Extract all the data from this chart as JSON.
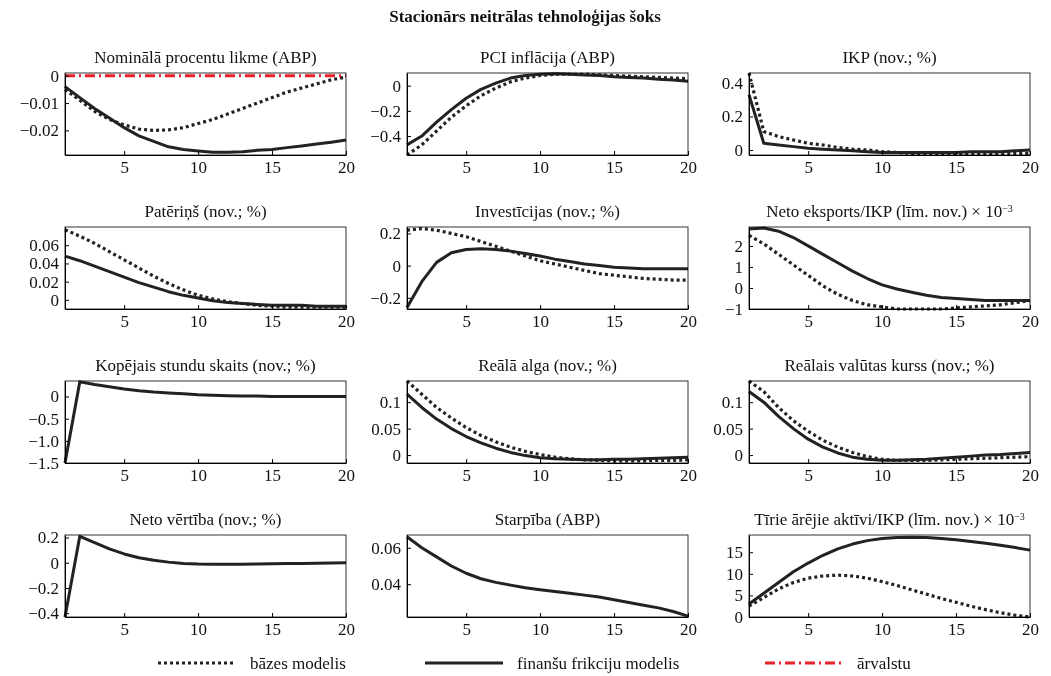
{
  "chart_data": [
    {
      "type": "line",
      "title": "Nominālā procentu likme (ABP)",
      "annotations": [
        "Stacionārs neitrālas tehnoloģijas šoks"
      ],
      "legend": "bottom",
      "x": [
        1,
        2,
        3,
        4,
        5,
        6,
        7,
        8,
        9,
        10,
        11,
        12,
        13,
        14,
        15,
        16,
        17,
        18,
        19,
        20
      ],
      "xlim": [
        1,
        20
      ],
      "xticks": [
        5,
        10,
        15,
        20
      ],
      "ylim": [
        -0.029,
        0.001
      ],
      "yticks": [
        0,
        -0.01,
        -0.02
      ],
      "series": [
        {
          "name": "bāzes modelis",
          "color": "#222222",
          "line_style": "dotted",
          "values": [
            -0.005,
            -0.009,
            -0.013,
            -0.016,
            -0.018,
            -0.0195,
            -0.02,
            -0.0198,
            -0.019,
            -0.0175,
            -0.016,
            -0.014,
            -0.012,
            -0.01,
            -0.008,
            -0.006,
            -0.0045,
            -0.003,
            -0.0015,
            -0.0005
          ]
        },
        {
          "name": "finanšu frikciju modelis",
          "color": "#222222",
          "line_style": "solid",
          "values": [
            -0.004,
            -0.008,
            -0.012,
            -0.0155,
            -0.019,
            -0.022,
            -0.024,
            -0.026,
            -0.027,
            -0.0275,
            -0.028,
            -0.028,
            -0.0278,
            -0.0273,
            -0.027,
            -0.0263,
            -0.0257,
            -0.025,
            -0.0243,
            -0.0235
          ]
        },
        {
          "name": "ārvalstu",
          "color": "#e8202a",
          "line_style": "dashed",
          "values": [
            0,
            0,
            0,
            0,
            0,
            0,
            0,
            0,
            0,
            0,
            0,
            0,
            0,
            0,
            0,
            0,
            0,
            0,
            0,
            0
          ]
        }
      ]
    },
    {
      "type": "line",
      "title": "PCI inflācija (ABP)",
      "x": [
        1,
        2,
        3,
        4,
        5,
        6,
        7,
        8,
        9,
        10,
        11,
        12,
        13,
        14,
        15,
        16,
        17,
        18,
        19,
        20
      ],
      "xlim": [
        1,
        20
      ],
      "xticks": [
        5,
        10,
        15,
        20
      ],
      "ylim": [
        -0.55,
        0.1
      ],
      "yticks": [
        0,
        -0.2,
        -0.4
      ],
      "series": [
        {
          "color": "#222222",
          "line_style": "dotted",
          "values": [
            -0.55,
            -0.47,
            -0.36,
            -0.25,
            -0.16,
            -0.08,
            -0.02,
            0.03,
            0.06,
            0.08,
            0.09,
            0.09,
            0.09,
            0.085,
            0.08,
            0.075,
            0.07,
            0.065,
            0.06,
            0.055
          ]
        },
        {
          "color": "#222222",
          "line_style": "solid",
          "values": [
            -0.47,
            -0.4,
            -0.29,
            -0.19,
            -0.1,
            -0.03,
            0.02,
            0.06,
            0.08,
            0.09,
            0.095,
            0.09,
            0.085,
            0.08,
            0.07,
            0.065,
            0.06,
            0.05,
            0.045,
            0.035
          ]
        }
      ]
    },
    {
      "type": "line",
      "title": "IKP (nov.; %)",
      "x": [
        1,
        2,
        3,
        4,
        5,
        6,
        7,
        8,
        9,
        10,
        11,
        12,
        13,
        14,
        15,
        16,
        17,
        18,
        19,
        20
      ],
      "xlim": [
        1,
        20
      ],
      "xticks": [
        5,
        10,
        15,
        20
      ],
      "ylim": [
        -0.03,
        0.46
      ],
      "yticks": [
        0,
        0.2,
        0.4
      ],
      "series": [
        {
          "color": "#222222",
          "line_style": "dotted",
          "values": [
            0.46,
            0.11,
            0.08,
            0.06,
            0.04,
            0.03,
            0.015,
            0.005,
            0,
            -0.01,
            -0.015,
            -0.02,
            -0.02,
            -0.02,
            -0.02,
            -0.02,
            -0.02,
            -0.02,
            -0.02,
            -0.02
          ]
        },
        {
          "color": "#222222",
          "line_style": "solid",
          "values": [
            0.33,
            0.04,
            0.03,
            0.02,
            0.01,
            0.005,
            0,
            -0.005,
            -0.01,
            -0.015,
            -0.015,
            -0.015,
            -0.015,
            -0.015,
            -0.015,
            -0.01,
            -0.01,
            -0.01,
            -0.005,
            0
          ]
        }
      ]
    },
    {
      "type": "line",
      "title": "Patēriņš (nov.; %)",
      "x": [
        1,
        2,
        3,
        4,
        5,
        6,
        7,
        8,
        9,
        10,
        11,
        12,
        13,
        14,
        15,
        16,
        17,
        18,
        19,
        20
      ],
      "xlim": [
        1,
        20
      ],
      "xticks": [
        5,
        10,
        15,
        20
      ],
      "ylim": [
        -0.01,
        0.08
      ],
      "yticks": [
        0,
        0.02,
        0.04,
        0.06
      ],
      "series": [
        {
          "color": "#222222",
          "line_style": "dotted",
          "values": [
            0.077,
            0.07,
            0.062,
            0.053,
            0.044,
            0.035,
            0.026,
            0.018,
            0.011,
            0.005,
            0.001,
            -0.002,
            -0.004,
            -0.006,
            -0.007,
            -0.008,
            -0.008,
            -0.008,
            -0.008,
            -0.008
          ]
        },
        {
          "color": "#222222",
          "line_style": "solid",
          "values": [
            0.048,
            0.043,
            0.037,
            0.031,
            0.025,
            0.019,
            0.014,
            0.009,
            0.005,
            0.002,
            -0.001,
            -0.003,
            -0.004,
            -0.005,
            -0.006,
            -0.006,
            -0.006,
            -0.007,
            -0.007,
            -0.007
          ]
        }
      ]
    },
    {
      "type": "line",
      "title": "Investīcijas (nov.; %)",
      "x": [
        1,
        2,
        3,
        4,
        5,
        6,
        7,
        8,
        9,
        10,
        11,
        12,
        13,
        14,
        15,
        16,
        17,
        18,
        19,
        20
      ],
      "xlim": [
        1,
        20
      ],
      "xticks": [
        5,
        10,
        15,
        20
      ],
      "ylim": [
        -0.27,
        0.24
      ],
      "yticks": [
        -0.2,
        0,
        0.2
      ],
      "series": [
        {
          "color": "#222222",
          "line_style": "dotted",
          "values": [
            0.22,
            0.23,
            0.22,
            0.2,
            0.18,
            0.15,
            0.12,
            0.09,
            0.06,
            0.03,
            0.01,
            -0.01,
            -0.03,
            -0.05,
            -0.06,
            -0.07,
            -0.08,
            -0.085,
            -0.09,
            -0.09
          ]
        },
        {
          "color": "#222222",
          "line_style": "solid",
          "values": [
            -0.26,
            -0.1,
            0.02,
            0.08,
            0.1,
            0.105,
            0.1,
            0.09,
            0.075,
            0.06,
            0.04,
            0.025,
            0.01,
            0,
            -0.01,
            -0.015,
            -0.02,
            -0.02,
            -0.02,
            -0.02
          ]
        }
      ]
    },
    {
      "type": "line",
      "title": "Neto eksports/IKP (līm. nov.) × 10$^{−3}$",
      "x": [
        1,
        2,
        3,
        4,
        5,
        6,
        7,
        8,
        9,
        10,
        11,
        12,
        13,
        14,
        15,
        16,
        17,
        18,
        19,
        20
      ],
      "xlim": [
        1,
        20
      ],
      "xticks": [
        5,
        10,
        15,
        20
      ],
      "ylim": [
        -1,
        2.9
      ],
      "yticks": [
        -1,
        0,
        1,
        2
      ],
      "series": [
        {
          "color": "#222222",
          "line_style": "dotted",
          "values": [
            2.5,
            2.1,
            1.6,
            1.1,
            0.6,
            0.1,
            -0.3,
            -0.6,
            -0.8,
            -0.9,
            -1,
            -1,
            -1,
            -1,
            -0.95,
            -0.9,
            -0.85,
            -0.8,
            -0.7,
            -0.6
          ]
        },
        {
          "color": "#222222",
          "line_style": "solid",
          "values": [
            2.8,
            2.85,
            2.7,
            2.4,
            2,
            1.6,
            1.2,
            0.8,
            0.45,
            0.15,
            -0.05,
            -0.2,
            -0.35,
            -0.45,
            -0.5,
            -0.55,
            -0.6,
            -0.6,
            -0.6,
            -0.6
          ]
        }
      ]
    },
    {
      "type": "line",
      "title": "Kopējais stundu skaits (nov.; %)",
      "x": [
        1,
        2,
        3,
        4,
        5,
        6,
        7,
        8,
        9,
        10,
        11,
        12,
        13,
        14,
        15,
        16,
        17,
        18,
        19,
        20
      ],
      "xlim": [
        1,
        20
      ],
      "xticks": [
        5,
        10,
        15,
        20
      ],
      "ylim": [
        -1.5,
        0.35
      ],
      "yticks": [
        0,
        -0.5,
        {
          "value": -1,
          "label": "−1.0"
        },
        -1.5
      ],
      "series": [
        {
          "color": "#222222",
          "line_style": "solid",
          "values": [
            -1.5,
            0.33,
            0.27,
            0.22,
            0.17,
            0.13,
            0.1,
            0.08,
            0.06,
            0.04,
            0.03,
            0.02,
            0.01,
            0.01,
            0,
            0,
            0,
            0,
            0,
            0
          ]
        }
      ]
    },
    {
      "type": "line",
      "title": "Reālā alga (nov.; %)",
      "x": [
        1,
        2,
        3,
        4,
        5,
        6,
        7,
        8,
        9,
        10,
        11,
        12,
        13,
        14,
        15,
        16,
        17,
        18,
        19,
        20
      ],
      "xlim": [
        1,
        20
      ],
      "xticks": [
        5,
        10,
        15,
        20
      ],
      "ylim": [
        -0.015,
        0.14
      ],
      "yticks": [
        0,
        0.05,
        0.1
      ],
      "series": [
        {
          "color": "#222222",
          "line_style": "dotted",
          "values": [
            0.14,
            0.115,
            0.09,
            0.07,
            0.052,
            0.037,
            0.025,
            0.015,
            0.007,
            0.001,
            -0.004,
            -0.007,
            -0.009,
            -0.01,
            -0.011,
            -0.011,
            -0.011,
            -0.01,
            -0.01,
            -0.009
          ]
        },
        {
          "color": "#222222",
          "line_style": "solid",
          "values": [
            0.115,
            0.09,
            0.068,
            0.05,
            0.035,
            0.023,
            0.013,
            0.005,
            -0.001,
            -0.005,
            -0.007,
            -0.008,
            -0.009,
            -0.009,
            -0.008,
            -0.008,
            -0.007,
            -0.006,
            -0.005,
            -0.004
          ]
        }
      ]
    },
    {
      "type": "line",
      "title": "Reālais valūtas kurss (nov.; %)",
      "x": [
        1,
        2,
        3,
        4,
        5,
        6,
        7,
        8,
        9,
        10,
        11,
        12,
        13,
        14,
        15,
        16,
        17,
        18,
        19,
        20
      ],
      "xlim": [
        1,
        20
      ],
      "xticks": [
        5,
        10,
        15,
        20
      ],
      "ylim": [
        -0.015,
        0.14
      ],
      "yticks": [
        0,
        0.05,
        0.1
      ],
      "series": [
        {
          "color": "#222222",
          "line_style": "dotted",
          "values": [
            0.14,
            0.12,
            0.09,
            0.065,
            0.045,
            0.028,
            0.015,
            0.005,
            -0.003,
            -0.008,
            -0.01,
            -0.01,
            -0.01,
            -0.009,
            -0.008,
            -0.007,
            -0.006,
            -0.005,
            -0.004,
            -0.003
          ]
        },
        {
          "color": "#222222",
          "line_style": "solid",
          "values": [
            0.12,
            0.1,
            0.073,
            0.05,
            0.03,
            0.015,
            0.004,
            -0.004,
            -0.008,
            -0.01,
            -0.01,
            -0.009,
            -0.008,
            -0.006,
            -0.004,
            -0.002,
            0,
            0.001,
            0.003,
            0.005
          ]
        }
      ]
    },
    {
      "type": "line",
      "title": "Neto vērtība (nov.; %)",
      "x": [
        1,
        2,
        3,
        4,
        5,
        6,
        7,
        8,
        9,
        10,
        11,
        12,
        13,
        14,
        15,
        16,
        17,
        18,
        19,
        20
      ],
      "xlim": [
        1,
        20
      ],
      "xticks": [
        5,
        10,
        15,
        20
      ],
      "ylim": [
        -0.43,
        0.22
      ],
      "yticks": [
        -0.4,
        -0.2,
        0,
        0.2
      ],
      "series": [
        {
          "color": "#222222",
          "line_style": "solid",
          "values": [
            -0.43,
            0.21,
            0.16,
            0.11,
            0.07,
            0.04,
            0.02,
            0.005,
            -0.005,
            -0.01,
            -0.012,
            -0.012,
            -0.012,
            -0.01,
            -0.008,
            -0.006,
            -0.005,
            -0.003,
            -0.002,
            0
          ]
        }
      ]
    },
    {
      "type": "line",
      "title": "Starpība (ABP)",
      "x": [
        1,
        2,
        3,
        4,
        5,
        6,
        7,
        8,
        9,
        10,
        11,
        12,
        13,
        14,
        15,
        16,
        17,
        18,
        19,
        20
      ],
      "xlim": [
        1,
        20
      ],
      "xticks": [
        5,
        10,
        15,
        20
      ],
      "ylim": [
        0.022,
        0.067
      ],
      "yticks": [
        0.04,
        0.06
      ],
      "series": [
        {
          "color": "#222222",
          "line_style": "solid",
          "values": [
            0.066,
            0.06,
            0.055,
            0.05,
            0.046,
            0.043,
            0.041,
            0.0395,
            0.038,
            0.037,
            0.036,
            0.035,
            0.034,
            0.033,
            0.0315,
            0.03,
            0.0285,
            0.027,
            0.025,
            0.0225
          ]
        }
      ]
    },
    {
      "type": "line",
      "title": "Tīrie ārējie aktīvi/IKP (līm. nov.) × 10$^{−3}$",
      "x": [
        1,
        2,
        3,
        4,
        5,
        6,
        7,
        8,
        9,
        10,
        11,
        12,
        13,
        14,
        15,
        16,
        17,
        18,
        19,
        20
      ],
      "xlim": [
        1,
        20
      ],
      "xticks": [
        5,
        10,
        15,
        20
      ],
      "ylim": [
        0,
        19
      ],
      "yticks": [
        0,
        5,
        10,
        15
      ],
      "series": [
        {
          "color": "#222222",
          "line_style": "dotted",
          "values": [
            2.5,
            4.5,
            6.5,
            8,
            9,
            9.5,
            9.7,
            9.5,
            9,
            8.2,
            7.3,
            6.3,
            5.3,
            4.3,
            3.4,
            2.5,
            1.7,
            1,
            0.4,
            0
          ]
        },
        {
          "color": "#222222",
          "line_style": "solid",
          "values": [
            3,
            5.5,
            8,
            10.5,
            12.5,
            14.3,
            15.8,
            16.9,
            17.7,
            18.2,
            18.4,
            18.5,
            18.4,
            18.2,
            17.9,
            17.5,
            17.1,
            16.6,
            16.1,
            15.5
          ]
        }
      ]
    }
  ]
}
